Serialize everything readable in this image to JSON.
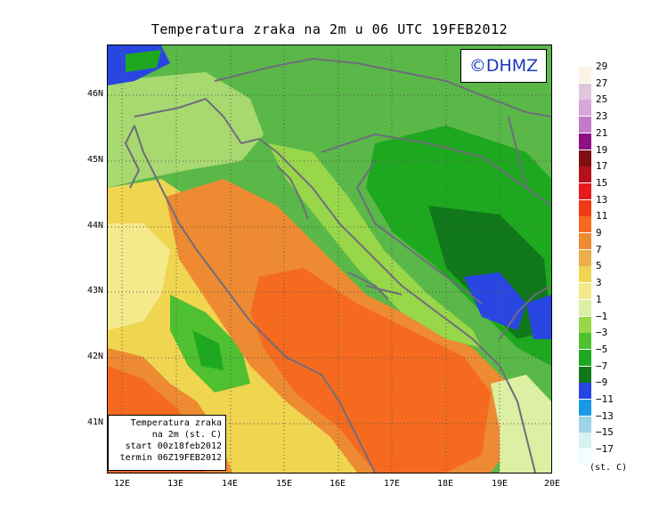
{
  "title": "Temperatura zraka na 2m u 06 UTC 19FEB2012",
  "logo": "©DHMZ",
  "info": {
    "line1": "Temperatura zraka",
    "line2": "na 2m (st. C)",
    "line3": "start 00z18feb2012",
    "line4": "termin 06Z19FEB2012"
  },
  "axes": {
    "lat_labels": [
      "46N",
      "45N",
      "44N",
      "43N",
      "42N",
      "41N"
    ],
    "lon_labels": [
      "12E",
      "13E",
      "14E",
      "15E",
      "16E",
      "17E",
      "18E",
      "19E",
      "20E"
    ]
  },
  "legend": {
    "unit": "(st. C)",
    "entries": [
      {
        "label": "29",
        "color": "#fdf2e6"
      },
      {
        "label": "27",
        "color": "#e0c8dc"
      },
      {
        "label": "25",
        "color": "#d8a6d8"
      },
      {
        "label": "23",
        "color": "#c47ac8"
      },
      {
        "label": "21",
        "color": "#8e0f86"
      },
      {
        "label": "19",
        "color": "#7f0f10"
      },
      {
        "label": "17",
        "color": "#b3121a"
      },
      {
        "label": "15",
        "color": "#e81a1a"
      },
      {
        "label": "13",
        "color": "#f03a14"
      },
      {
        "label": "11",
        "color": "#f56a1e"
      },
      {
        "label": "9",
        "color": "#ee8a32"
      },
      {
        "label": "7",
        "color": "#ecae46"
      },
      {
        "label": "5",
        "color": "#efd550"
      },
      {
        "label": "3",
        "color": "#f4ea8c"
      },
      {
        "label": "1",
        "color": "#dcefa2"
      },
      {
        "label": "−1",
        "color": "#98d64a"
      },
      {
        "label": "−3",
        "color": "#4fc030"
      },
      {
        "label": "−5",
        "color": "#1ea81f"
      },
      {
        "label": "−7",
        "color": "#10781a"
      },
      {
        "label": "−9",
        "color": "#2a46e2"
      },
      {
        "label": "−11",
        "color": "#1a9ae6"
      },
      {
        "label": "−13",
        "color": "#9fd3e8"
      },
      {
        "label": "−15",
        "color": "#d8f2f2"
      },
      {
        "label": "−17",
        "color": "#f2fcfc"
      }
    ]
  }
}
